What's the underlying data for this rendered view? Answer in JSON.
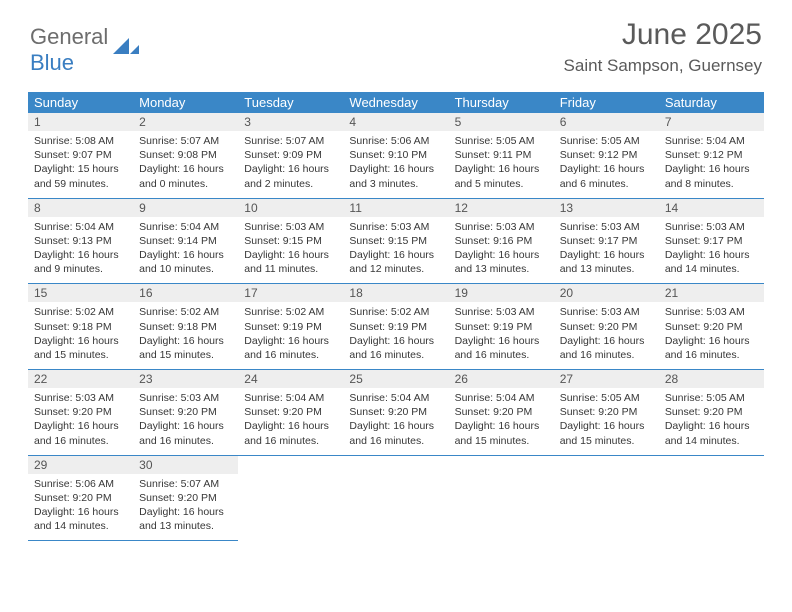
{
  "logo": {
    "word1": "General",
    "word2": "Blue",
    "mark_color": "#3a7ec1"
  },
  "title": "June 2025",
  "location": "Saint Sampson, Guernsey",
  "colors": {
    "header_bg": "#3a87c7",
    "header_text": "#ffffff",
    "daynum_bg": "#eeeeee",
    "rule": "#3a87c7",
    "body_text": "#373737"
  },
  "day_headers": [
    "Sunday",
    "Monday",
    "Tuesday",
    "Wednesday",
    "Thursday",
    "Friday",
    "Saturday"
  ],
  "weeks": [
    [
      {
        "n": "1",
        "sr": "5:08 AM",
        "ss": "9:07 PM",
        "dl": "15 hours and 59 minutes."
      },
      {
        "n": "2",
        "sr": "5:07 AM",
        "ss": "9:08 PM",
        "dl": "16 hours and 0 minutes."
      },
      {
        "n": "3",
        "sr": "5:07 AM",
        "ss": "9:09 PM",
        "dl": "16 hours and 2 minutes."
      },
      {
        "n": "4",
        "sr": "5:06 AM",
        "ss": "9:10 PM",
        "dl": "16 hours and 3 minutes."
      },
      {
        "n": "5",
        "sr": "5:05 AM",
        "ss": "9:11 PM",
        "dl": "16 hours and 5 minutes."
      },
      {
        "n": "6",
        "sr": "5:05 AM",
        "ss": "9:12 PM",
        "dl": "16 hours and 6 minutes."
      },
      {
        "n": "7",
        "sr": "5:04 AM",
        "ss": "9:12 PM",
        "dl": "16 hours and 8 minutes."
      }
    ],
    [
      {
        "n": "8",
        "sr": "5:04 AM",
        "ss": "9:13 PM",
        "dl": "16 hours and 9 minutes."
      },
      {
        "n": "9",
        "sr": "5:04 AM",
        "ss": "9:14 PM",
        "dl": "16 hours and 10 minutes."
      },
      {
        "n": "10",
        "sr": "5:03 AM",
        "ss": "9:15 PM",
        "dl": "16 hours and 11 minutes."
      },
      {
        "n": "11",
        "sr": "5:03 AM",
        "ss": "9:15 PM",
        "dl": "16 hours and 12 minutes."
      },
      {
        "n": "12",
        "sr": "5:03 AM",
        "ss": "9:16 PM",
        "dl": "16 hours and 13 minutes."
      },
      {
        "n": "13",
        "sr": "5:03 AM",
        "ss": "9:17 PM",
        "dl": "16 hours and 13 minutes."
      },
      {
        "n": "14",
        "sr": "5:03 AM",
        "ss": "9:17 PM",
        "dl": "16 hours and 14 minutes."
      }
    ],
    [
      {
        "n": "15",
        "sr": "5:02 AM",
        "ss": "9:18 PM",
        "dl": "16 hours and 15 minutes."
      },
      {
        "n": "16",
        "sr": "5:02 AM",
        "ss": "9:18 PM",
        "dl": "16 hours and 15 minutes."
      },
      {
        "n": "17",
        "sr": "5:02 AM",
        "ss": "9:19 PM",
        "dl": "16 hours and 16 minutes."
      },
      {
        "n": "18",
        "sr": "5:02 AM",
        "ss": "9:19 PM",
        "dl": "16 hours and 16 minutes."
      },
      {
        "n": "19",
        "sr": "5:03 AM",
        "ss": "9:19 PM",
        "dl": "16 hours and 16 minutes."
      },
      {
        "n": "20",
        "sr": "5:03 AM",
        "ss": "9:20 PM",
        "dl": "16 hours and 16 minutes."
      },
      {
        "n": "21",
        "sr": "5:03 AM",
        "ss": "9:20 PM",
        "dl": "16 hours and 16 minutes."
      }
    ],
    [
      {
        "n": "22",
        "sr": "5:03 AM",
        "ss": "9:20 PM",
        "dl": "16 hours and 16 minutes."
      },
      {
        "n": "23",
        "sr": "5:03 AM",
        "ss": "9:20 PM",
        "dl": "16 hours and 16 minutes."
      },
      {
        "n": "24",
        "sr": "5:04 AM",
        "ss": "9:20 PM",
        "dl": "16 hours and 16 minutes."
      },
      {
        "n": "25",
        "sr": "5:04 AM",
        "ss": "9:20 PM",
        "dl": "16 hours and 16 minutes."
      },
      {
        "n": "26",
        "sr": "5:04 AM",
        "ss": "9:20 PM",
        "dl": "16 hours and 15 minutes."
      },
      {
        "n": "27",
        "sr": "5:05 AM",
        "ss": "9:20 PM",
        "dl": "16 hours and 15 minutes."
      },
      {
        "n": "28",
        "sr": "5:05 AM",
        "ss": "9:20 PM",
        "dl": "16 hours and 14 minutes."
      }
    ],
    [
      {
        "n": "29",
        "sr": "5:06 AM",
        "ss": "9:20 PM",
        "dl": "16 hours and 14 minutes."
      },
      {
        "n": "30",
        "sr": "5:07 AM",
        "ss": "9:20 PM",
        "dl": "16 hours and 13 minutes."
      },
      null,
      null,
      null,
      null,
      null
    ]
  ],
  "labels": {
    "sunrise": "Sunrise:",
    "sunset": "Sunset:",
    "daylight": "Daylight:"
  }
}
